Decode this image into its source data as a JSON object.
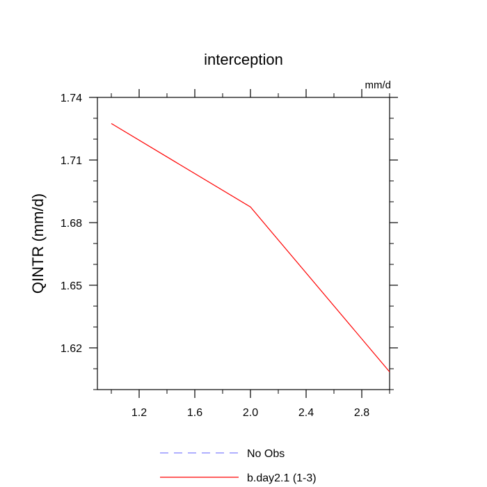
{
  "chart_data": {
    "type": "line",
    "title": "interception",
    "units": "mm/d",
    "ylabel": "QINTR  (mm/d)",
    "xlabel": "",
    "xlim": [
      0.9,
      3.0
    ],
    "ylim": [
      1.6,
      1.74
    ],
    "xticks": [
      1.2,
      1.6,
      2.0,
      2.4,
      2.8
    ],
    "xtick_labels": [
      "1.2",
      "1.6",
      "2.0",
      "2.4",
      "2.8"
    ],
    "yticks": [
      1.62,
      1.65,
      1.68,
      1.71,
      1.74
    ],
    "ytick_labels": [
      "1.62",
      "1.65",
      "1.68",
      "1.71",
      "1.74"
    ],
    "grid": false,
    "legend_position": "bottom",
    "series": [
      {
        "name": "b.day2.1 (1-3)",
        "color": "#ff0000",
        "dash": "solid",
        "x": [
          1,
          2,
          3
        ],
        "y": [
          1.7275,
          1.6875,
          1.6085
        ]
      }
    ],
    "legend": [
      {
        "label": "No Obs",
        "color": "#7f7fff",
        "dash": "dashed"
      },
      {
        "label": "b.day2.1 (1-3)",
        "color": "#ff0000",
        "dash": "solid"
      }
    ]
  }
}
